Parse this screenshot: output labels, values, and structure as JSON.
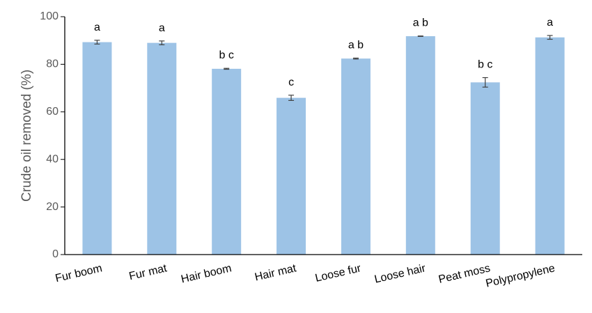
{
  "chart_data": {
    "type": "bar",
    "title": "",
    "xlabel": "",
    "ylabel": "Crude oil removed (%)",
    "ylim": [
      0,
      100
    ],
    "yticks": [
      0,
      20,
      40,
      60,
      80,
      100
    ],
    "grid": false,
    "legend": "none",
    "categories": [
      "Fur boom",
      "Fur mat",
      "Hair boom",
      "Hair mat",
      "Loose fur",
      "Loose hair",
      "Peat moss",
      "Polypropylene"
    ],
    "series": [
      {
        "values": [
          89.3,
          89.0,
          78.1,
          65.9,
          82.4,
          91.8,
          72.4,
          91.3
        ],
        "error": [
          0.8,
          0.8,
          0.2,
          1.1,
          0.2,
          0.1,
          2.0,
          0.8
        ],
        "color": "#9DC3E6"
      }
    ],
    "annotations": [
      "a",
      "a",
      "b c",
      "c",
      "a b",
      "a b",
      "b c",
      "a"
    ],
    "axis_color": "#000000",
    "tick_color": "#595959",
    "error_bar_color": "#404040"
  }
}
